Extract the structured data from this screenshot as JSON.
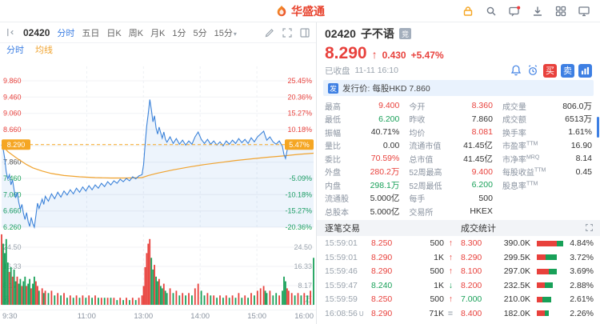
{
  "palette": {
    "up": "#e8413c",
    "down": "#18a058",
    "accent": "#3d7fe3",
    "line": "#3b82d9",
    "avg": "#f0a32f",
    "current": "#f5a623"
  },
  "header": {
    "logo_text": "华盛通",
    "icons": [
      "lock-icon",
      "search-icon",
      "message-icon",
      "download-icon",
      "apps-icon",
      "monitor-icon"
    ]
  },
  "toolbar": {
    "code": "02420",
    "periods": [
      "分时",
      "五日",
      "日K",
      "周K",
      "月K",
      "1分",
      "5分",
      "15分"
    ],
    "active": "分时",
    "icons": [
      "collapse-panel-icon",
      "draw-icon",
      "fullscreen-icon",
      "layout-icon"
    ]
  },
  "legend": {
    "minute_label": "分时",
    "avg_label": "均线"
  },
  "chart_data": {
    "type": "line",
    "title": "02420 分时图",
    "prev_close": 7.86,
    "ylim": [
      6.26,
      9.86
    ],
    "grid_prices": [
      9.86,
      9.46,
      9.06,
      8.66,
      8.26,
      7.86,
      7.46,
      7.06,
      6.66,
      6.26
    ],
    "price_labels": [
      "9.860",
      "9.460",
      "9.060",
      "8.660",
      "",
      "7.860",
      "7.460",
      "7.060",
      "6.660",
      "6.260"
    ],
    "pct_labels": [
      "25.45%",
      "20.36%",
      "15.27%",
      "10.18%",
      "",
      "",
      "-5.09%",
      "-10.18%",
      "-15.27%",
      "-20.36%"
    ],
    "current": {
      "price": 8.29,
      "price_label": "8.290",
      "pct_label": "5.47%"
    },
    "x_ticks": [
      {
        "label": "9:30",
        "pos": 0
      },
      {
        "label": "11:00",
        "pos": 0.2727
      },
      {
        "label": "13:00",
        "pos": 0.4545
      },
      {
        "label": "14:00",
        "pos": 0.6364
      },
      {
        "label": "15:00",
        "pos": 0.8182
      },
      {
        "label": "16:00",
        "pos": 1
      }
    ],
    "vol_ticks": [
      {
        "label": "24.50",
        "v": 24.5
      },
      {
        "label": "16.33",
        "v": 16.33
      },
      {
        "label": "8.17",
        "v": 8.17
      }
    ],
    "vol_unit": "万",
    "points": [
      [
        0,
        8.29,
        30
      ],
      [
        0.005,
        8.18,
        26
      ],
      [
        0.01,
        7.95,
        22
      ],
      [
        0.015,
        7.62,
        28
      ],
      [
        0.02,
        7.45,
        18
      ],
      [
        0.025,
        7.55,
        14
      ],
      [
        0.03,
        7.3,
        16
      ],
      [
        0.035,
        7.42,
        12
      ],
      [
        0.04,
        7.18,
        15
      ],
      [
        0.045,
        6.98,
        10
      ],
      [
        0.05,
        7.12,
        12
      ],
      [
        0.055,
        6.88,
        9
      ],
      [
        0.06,
        6.7,
        11
      ],
      [
        0.065,
        6.82,
        8
      ],
      [
        0.07,
        6.6,
        10
      ],
      [
        0.075,
        6.45,
        12
      ],
      [
        0.08,
        6.62,
        8
      ],
      [
        0.085,
        6.4,
        9
      ],
      [
        0.09,
        6.28,
        11
      ],
      [
        0.095,
        6.5,
        7
      ],
      [
        0.1,
        6.35,
        9
      ],
      [
        0.105,
        6.26,
        12
      ],
      [
        0.11,
        6.55,
        10
      ],
      [
        0.115,
        6.85,
        8
      ],
      [
        0.12,
        6.72,
        6
      ],
      [
        0.13,
        6.95,
        7
      ],
      [
        0.135,
        6.82,
        5
      ],
      [
        0.14,
        7.02,
        6
      ],
      [
        0.15,
        6.9,
        5
      ],
      [
        0.16,
        7.08,
        6
      ],
      [
        0.17,
        6.96,
        4
      ],
      [
        0.18,
        7.12,
        5
      ],
      [
        0.19,
        7.0,
        4
      ],
      [
        0.2,
        7.15,
        5
      ],
      [
        0.21,
        7.05,
        3
      ],
      [
        0.22,
        7.18,
        4
      ],
      [
        0.23,
        7.08,
        3
      ],
      [
        0.24,
        7.22,
        4
      ],
      [
        0.25,
        7.12,
        3
      ],
      [
        0.26,
        7.25,
        4
      ],
      [
        0.27,
        7.15,
        3
      ],
      [
        0.28,
        7.28,
        4
      ],
      [
        0.29,
        7.18,
        3
      ],
      [
        0.3,
        7.3,
        4
      ],
      [
        0.31,
        7.22,
        3
      ],
      [
        0.32,
        7.34,
        3
      ],
      [
        0.33,
        7.26,
        3
      ],
      [
        0.34,
        7.38,
        3
      ],
      [
        0.35,
        7.3,
        3
      ],
      [
        0.36,
        7.4,
        3
      ],
      [
        0.37,
        7.34,
        2
      ],
      [
        0.38,
        7.44,
        3
      ],
      [
        0.39,
        7.38,
        2
      ],
      [
        0.4,
        7.46,
        3
      ],
      [
        0.41,
        7.4,
        2
      ],
      [
        0.42,
        7.5,
        3
      ],
      [
        0.43,
        7.45,
        2
      ],
      [
        0.44,
        7.52,
        3
      ],
      [
        0.45,
        7.55,
        4
      ],
      [
        0.455,
        7.8,
        8
      ],
      [
        0.46,
        8.3,
        16
      ],
      [
        0.465,
        8.75,
        22
      ],
      [
        0.47,
        9.05,
        26
      ],
      [
        0.475,
        9.4,
        28
      ],
      [
        0.48,
        9.15,
        20
      ],
      [
        0.485,
        8.85,
        15
      ],
      [
        0.49,
        9.0,
        17
      ],
      [
        0.495,
        8.7,
        12
      ],
      [
        0.5,
        8.55,
        10
      ],
      [
        0.505,
        8.72,
        11
      ],
      [
        0.51,
        8.58,
        8
      ],
      [
        0.515,
        8.45,
        7
      ],
      [
        0.52,
        8.6,
        9
      ],
      [
        0.525,
        8.42,
        6
      ],
      [
        0.53,
        8.35,
        5
      ],
      [
        0.54,
        8.48,
        7
      ],
      [
        0.55,
        8.32,
        5
      ],
      [
        0.56,
        8.44,
        6
      ],
      [
        0.57,
        8.3,
        4
      ],
      [
        0.58,
        8.4,
        5
      ],
      [
        0.59,
        8.28,
        4
      ],
      [
        0.6,
        8.38,
        5
      ],
      [
        0.61,
        8.3,
        4
      ],
      [
        0.62,
        8.48,
        7
      ],
      [
        0.63,
        8.6,
        9
      ],
      [
        0.64,
        8.42,
        6
      ],
      [
        0.65,
        8.32,
        4
      ],
      [
        0.66,
        8.42,
        5
      ],
      [
        0.67,
        8.3,
        4
      ],
      [
        0.68,
        8.38,
        4
      ],
      [
        0.69,
        8.28,
        3
      ],
      [
        0.7,
        8.36,
        4
      ],
      [
        0.71,
        8.26,
        3
      ],
      [
        0.72,
        8.38,
        4
      ],
      [
        0.73,
        8.3,
        3
      ],
      [
        0.74,
        8.4,
        4
      ],
      [
        0.75,
        8.32,
        3
      ],
      [
        0.76,
        8.44,
        5
      ],
      [
        0.77,
        8.34,
        3
      ],
      [
        0.78,
        8.42,
        4
      ],
      [
        0.79,
        8.32,
        3
      ],
      [
        0.8,
        8.46,
        5
      ],
      [
        0.81,
        8.36,
        4
      ],
      [
        0.82,
        8.48,
        6
      ],
      [
        0.83,
        8.55,
        7
      ],
      [
        0.84,
        8.62,
        8
      ],
      [
        0.845,
        8.5,
        6
      ],
      [
        0.85,
        8.4,
        5
      ],
      [
        0.86,
        8.48,
        6
      ],
      [
        0.87,
        8.36,
        4
      ],
      [
        0.88,
        8.3,
        5
      ],
      [
        0.89,
        8.38,
        4
      ],
      [
        0.9,
        8.25,
        6
      ],
      [
        0.905,
        8.05,
        12
      ],
      [
        0.91,
        7.95,
        10
      ],
      [
        0.915,
        8.15,
        7
      ],
      [
        0.92,
        8.28,
        6
      ],
      [
        0.93,
        8.36,
        5
      ],
      [
        0.94,
        8.26,
        4
      ],
      [
        0.95,
        8.34,
        5
      ],
      [
        0.96,
        8.24,
        4
      ],
      [
        0.97,
        8.32,
        5
      ],
      [
        0.98,
        8.26,
        4
      ],
      [
        0.99,
        8.32,
        6
      ],
      [
        1,
        8.29,
        20
      ]
    ],
    "avg": [
      [
        0,
        8.29
      ],
      [
        0.02,
        8.12
      ],
      [
        0.05,
        7.95
      ],
      [
        0.08,
        7.8
      ],
      [
        0.1,
        7.72
      ],
      [
        0.13,
        7.64
      ],
      [
        0.16,
        7.58
      ],
      [
        0.2,
        7.53
      ],
      [
        0.25,
        7.5
      ],
      [
        0.3,
        7.48
      ],
      [
        0.35,
        7.47
      ],
      [
        0.4,
        7.47
      ],
      [
        0.45,
        7.48
      ],
      [
        0.47,
        7.53
      ],
      [
        0.5,
        7.59
      ],
      [
        0.55,
        7.67
      ],
      [
        0.6,
        7.74
      ],
      [
        0.65,
        7.8
      ],
      [
        0.7,
        7.85
      ],
      [
        0.75,
        7.9
      ],
      [
        0.8,
        7.94
      ],
      [
        0.85,
        7.98
      ],
      [
        0.9,
        8.01
      ],
      [
        0.95,
        8.05
      ],
      [
        1,
        8.08
      ]
    ]
  },
  "quote": {
    "code": "02420",
    "name": "子不语",
    "session_badge": "竞",
    "price": "8.290",
    "change": "0.430",
    "change_pct": "+5.47%",
    "status": "已收盘",
    "datetime": "11-11 16:10",
    "buy_label": "买",
    "sell_label": "卖",
    "ipo_label": "发",
    "ipo_text": "发行价: 每股HKD 7.860"
  },
  "quote_grid": [
    [
      {
        "label": "最高",
        "value": "9.400",
        "color": "up"
      },
      {
        "label": "今开",
        "value": "8.360",
        "color": "up"
      },
      {
        "label": "成交量",
        "value": "806.0万",
        "color": "normal"
      }
    ],
    [
      {
        "label": "最低",
        "value": "6.200",
        "color": "down"
      },
      {
        "label": "昨收",
        "value": "7.860",
        "color": "normal"
      },
      {
        "label": "成交额",
        "value": "6513万",
        "color": "normal"
      }
    ],
    [
      {
        "label": "振幅",
        "value": "40.71%",
        "color": "normal"
      },
      {
        "label": "均价",
        "value": "8.081",
        "color": "up"
      },
      {
        "label": "换手率",
        "value": "1.61%",
        "color": "normal"
      }
    ],
    [
      {
        "label": "量比",
        "value": "0.00",
        "color": "normal"
      },
      {
        "label": "流通市值",
        "value": "41.45亿",
        "color": "normal"
      },
      {
        "label": "市盈率TTM",
        "value": "16.90",
        "color": "normal"
      }
    ],
    [
      {
        "label": "委比",
        "value": "70.59%",
        "color": "up"
      },
      {
        "label": "总市值",
        "value": "41.45亿",
        "color": "normal"
      },
      {
        "label": "市净率MRQ",
        "value": "8.14",
        "color": "normal"
      }
    ],
    [
      {
        "label": "外盘",
        "value": "280.2万",
        "color": "up"
      },
      {
        "label": "52周最高",
        "value": "9.400",
        "color": "up"
      },
      {
        "label": "每股收益TTM",
        "value": "0.45",
        "color": "normal"
      }
    ],
    [
      {
        "label": "内盘",
        "value": "298.1万",
        "color": "down"
      },
      {
        "label": "52周最低",
        "value": "6.200",
        "color": "down"
      },
      {
        "label": "股息率TTM",
        "value": "",
        "color": "normal"
      }
    ],
    [
      {
        "label": "流通股",
        "value": "5.000亿",
        "color": "normal"
      },
      {
        "label": "每手",
        "value": "500",
        "color": "normal"
      },
      {
        "label": "",
        "value": "",
        "color": "normal"
      }
    ],
    [
      {
        "label": "总股本",
        "value": "5.000亿",
        "color": "normal"
      },
      {
        "label": "交易所",
        "value": "HKEX",
        "color": "normal"
      },
      {
        "label": "",
        "value": "",
        "color": "normal"
      }
    ]
  ],
  "lists": {
    "ticks_title": "逐笔交易",
    "stats_title": "成交统计"
  },
  "tick_trades": [
    {
      "time": "15:59:01",
      "tag": "",
      "price": "8.250",
      "vol": "500",
      "dir": "up"
    },
    {
      "time": "15:59:01",
      "tag": "",
      "price": "8.290",
      "vol": "1K",
      "dir": "up"
    },
    {
      "time": "15:59:46",
      "tag": "",
      "price": "8.290",
      "vol": "500",
      "dir": "up"
    },
    {
      "time": "15:59:47",
      "tag": "",
      "price": "8.240",
      "vol": "1K",
      "dir": "down"
    },
    {
      "time": "15:59:59",
      "tag": "",
      "price": "8.250",
      "vol": "500",
      "dir": "up"
    },
    {
      "time": "16:08:56",
      "tag": "U",
      "price": "8.290",
      "vol": "71K",
      "dir": "flat"
    }
  ],
  "vol_stats": [
    {
      "price": "8.300",
      "color": "up",
      "vol": "390.0K",
      "pct": "4.84%",
      "pct_val": 4.84,
      "buy": 0.75
    },
    {
      "price": "8.290",
      "color": "up",
      "vol": "299.5K",
      "pct": "3.72%",
      "pct_val": 3.72,
      "buy": 0.45
    },
    {
      "price": "8.100",
      "color": "up",
      "vol": "297.0K",
      "pct": "3.69%",
      "pct_val": 3.69,
      "buy": 0.6
    },
    {
      "price": "8.200",
      "color": "up",
      "vol": "232.5K",
      "pct": "2.88%",
      "pct_val": 2.88,
      "buy": 0.5
    },
    {
      "price": "7.000",
      "color": "down",
      "vol": "210.0K",
      "pct": "2.61%",
      "pct_val": 2.61,
      "buy": 0.4
    },
    {
      "price": "8.400",
      "color": "up",
      "vol": "182.0K",
      "pct": "2.26%",
      "pct_val": 2.26,
      "buy": 0.65
    }
  ]
}
